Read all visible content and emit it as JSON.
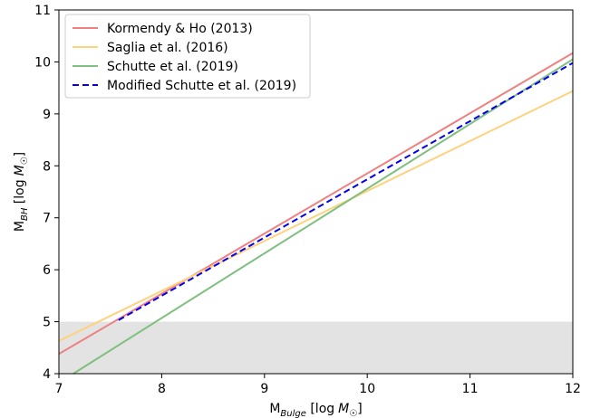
{
  "chart_data": {
    "type": "line",
    "xlabel": {
      "main": "M",
      "sub": "Bulge",
      "unit_prefix": " [log",
      "unit_var": "M",
      "unit_sub": "☉",
      "unit_suffix": "]"
    },
    "ylabel": {
      "main": "M",
      "sub": "BH",
      "unit_prefix": " [log",
      "unit_var": "M",
      "unit_sub": "☉",
      "unit_suffix": "]"
    },
    "xlim": [
      7,
      12
    ],
    "ylim": [
      4,
      11
    ],
    "xticks": [
      7,
      8,
      9,
      10,
      11,
      12
    ],
    "yticks": [
      4,
      5,
      6,
      7,
      8,
      9,
      10,
      11
    ],
    "shaded_region": {
      "y_from": 4,
      "y_to": 5,
      "color": "#e3e3e3"
    },
    "legend_position": "upper-left",
    "series": [
      {
        "name": "Kormendy & Ho (2013)",
        "color": "#f08080",
        "style": "solid",
        "x": [
          7,
          12
        ],
        "y": [
          4.38,
          10.17
        ]
      },
      {
        "name": "Saglia et al. (2016)",
        "color": "#ffd27f",
        "style": "solid",
        "x": [
          7,
          12
        ],
        "y": [
          4.63,
          9.44
        ]
      },
      {
        "name": "Schutte et al. (2019)",
        "color": "#7fbf7f",
        "style": "solid",
        "x": [
          7.14,
          12
        ],
        "y": [
          4.0,
          10.05
        ]
      },
      {
        "name": "Modified Schutte et al. (2019)",
        "color": "#0000ee",
        "style": "dashed",
        "x": [
          7.58,
          12
        ],
        "y": [
          5.03,
          9.98
        ]
      }
    ]
  }
}
